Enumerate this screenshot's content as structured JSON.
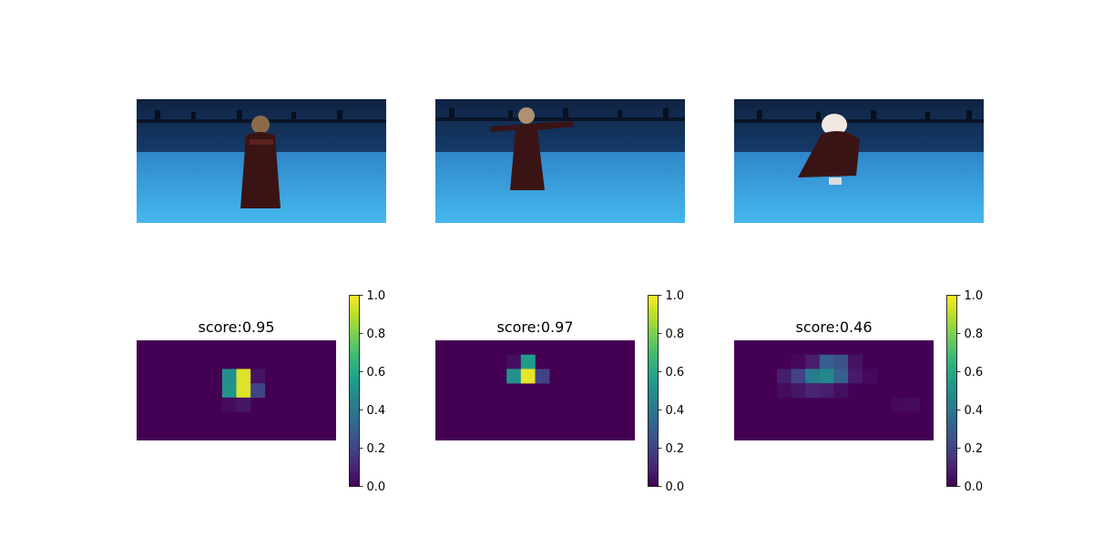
{
  "photos": [
    {
      "subject": "person-arms-crossed"
    },
    {
      "subject": "person-arms-outstretched"
    },
    {
      "subject": "person-spinning"
    }
  ],
  "colorbar_ticks": [
    "0.0",
    "0.2",
    "0.4",
    "0.6",
    "0.8",
    "1.0"
  ],
  "chart_data": [
    {
      "type": "heatmap",
      "title": "score:0.95",
      "score": 0.95,
      "colormap": "viridis",
      "vlim": [
        0,
        1
      ],
      "grid_cols": 14,
      "grid_rows": 7,
      "cells": [
        {
          "col": 6,
          "row": 2,
          "value": 0.5
        },
        {
          "col": 7,
          "row": 2,
          "value": 0.95
        },
        {
          "col": 8,
          "row": 2,
          "value": 0.05
        },
        {
          "col": 6,
          "row": 3,
          "value": 0.52
        },
        {
          "col": 7,
          "row": 3,
          "value": 0.95
        },
        {
          "col": 8,
          "row": 3,
          "value": 0.2
        },
        {
          "col": 6,
          "row": 4,
          "value": 0.03
        },
        {
          "col": 7,
          "row": 4,
          "value": 0.06
        }
      ]
    },
    {
      "type": "heatmap",
      "title": "score:0.97",
      "score": 0.97,
      "colormap": "viridis",
      "vlim": [
        0,
        1
      ],
      "grid_cols": 14,
      "grid_rows": 7,
      "cells": [
        {
          "col": 5,
          "row": 1,
          "value": 0.04
        },
        {
          "col": 6,
          "row": 1,
          "value": 0.55
        },
        {
          "col": 5,
          "row": 2,
          "value": 0.5
        },
        {
          "col": 6,
          "row": 2,
          "value": 0.97
        },
        {
          "col": 7,
          "row": 2,
          "value": 0.2
        }
      ]
    },
    {
      "type": "heatmap",
      "title": "score:0.46",
      "score": 0.46,
      "colormap": "viridis",
      "vlim": [
        0,
        1
      ],
      "grid_cols": 14,
      "grid_rows": 7,
      "cells": [
        {
          "col": 4,
          "row": 1,
          "value": 0.02
        },
        {
          "col": 5,
          "row": 1,
          "value": 0.08
        },
        {
          "col": 6,
          "row": 1,
          "value": 0.3
        },
        {
          "col": 7,
          "row": 1,
          "value": 0.25
        },
        {
          "col": 8,
          "row": 1,
          "value": 0.05
        },
        {
          "col": 3,
          "row": 2,
          "value": 0.08
        },
        {
          "col": 4,
          "row": 2,
          "value": 0.2
        },
        {
          "col": 5,
          "row": 2,
          "value": 0.42
        },
        {
          "col": 6,
          "row": 2,
          "value": 0.46
        },
        {
          "col": 7,
          "row": 2,
          "value": 0.3
        },
        {
          "col": 8,
          "row": 2,
          "value": 0.07
        },
        {
          "col": 9,
          "row": 2,
          "value": 0.02
        },
        {
          "col": 3,
          "row": 3,
          "value": 0.03
        },
        {
          "col": 4,
          "row": 3,
          "value": 0.06
        },
        {
          "col": 5,
          "row": 3,
          "value": 0.1
        },
        {
          "col": 6,
          "row": 3,
          "value": 0.08
        },
        {
          "col": 7,
          "row": 3,
          "value": 0.04
        },
        {
          "col": 11,
          "row": 4,
          "value": 0.02
        },
        {
          "col": 12,
          "row": 4,
          "value": 0.03
        }
      ]
    }
  ]
}
